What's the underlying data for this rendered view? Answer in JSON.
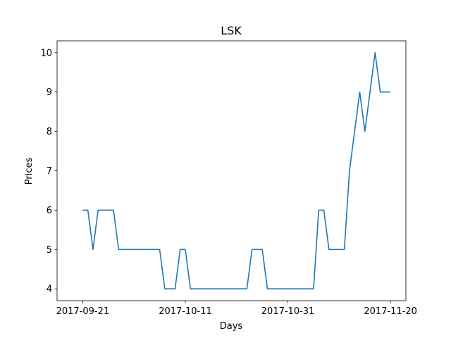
{
  "chart_data": {
    "type": "line",
    "title": "LSK",
    "xlabel": "Days",
    "ylabel": "Prices",
    "x_start": "2017-09-21",
    "x_end": "2017-11-20",
    "x_ticks": [
      "2017-09-21",
      "2017-10-11",
      "2017-10-31",
      "2017-11-20"
    ],
    "y_ticks": [
      4,
      5,
      6,
      7,
      8,
      9,
      10
    ],
    "xlim": [
      "2017-09-16",
      "2017-11-23"
    ],
    "ylim": [
      3.7,
      10.3
    ],
    "grid": false,
    "series_color": "#1f77b4",
    "series": [
      {
        "name": "",
        "x": [
          "2017-09-21",
          "2017-09-22",
          "2017-09-23",
          "2017-09-24",
          "2017-09-25",
          "2017-09-26",
          "2017-09-27",
          "2017-09-28",
          "2017-09-29",
          "2017-09-30",
          "2017-10-01",
          "2017-10-02",
          "2017-10-03",
          "2017-10-04",
          "2017-10-05",
          "2017-10-06",
          "2017-10-07",
          "2017-10-08",
          "2017-10-09",
          "2017-10-10",
          "2017-10-11",
          "2017-10-12",
          "2017-10-13",
          "2017-10-14",
          "2017-10-15",
          "2017-10-16",
          "2017-10-17",
          "2017-10-18",
          "2017-10-19",
          "2017-10-20",
          "2017-10-21",
          "2017-10-22",
          "2017-10-23",
          "2017-10-24",
          "2017-10-25",
          "2017-10-26",
          "2017-10-27",
          "2017-10-28",
          "2017-10-29",
          "2017-10-30",
          "2017-10-31",
          "2017-11-01",
          "2017-11-02",
          "2017-11-03",
          "2017-11-04",
          "2017-11-05",
          "2017-11-06",
          "2017-11-07",
          "2017-11-08",
          "2017-11-09",
          "2017-11-10",
          "2017-11-11",
          "2017-11-12",
          "2017-11-13",
          "2017-11-14",
          "2017-11-15",
          "2017-11-16",
          "2017-11-17",
          "2017-11-18",
          "2017-11-19",
          "2017-11-20"
        ],
        "values": [
          6,
          6,
          5,
          6,
          6,
          6,
          6,
          5,
          5,
          5,
          5,
          5,
          5,
          5,
          5,
          5,
          4,
          4,
          4,
          5,
          5,
          4,
          4,
          4,
          4,
          4,
          4,
          4,
          4,
          4,
          4,
          4,
          4,
          5,
          5,
          5,
          4,
          4,
          4,
          4,
          4,
          4,
          4,
          4,
          4,
          4,
          6,
          6,
          5,
          5,
          5,
          5,
          7,
          8,
          9,
          8,
          9,
          10,
          9,
          9,
          9
        ]
      }
    ]
  }
}
